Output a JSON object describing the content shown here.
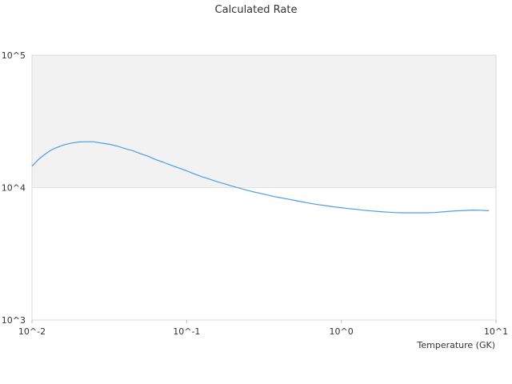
{
  "chart_data": {
    "type": "line",
    "title": "Calculated Rate",
    "xlabel": "Temperature (GK)",
    "ylabel": "",
    "x_scale": "log",
    "y_scale": "log",
    "xlim": [
      0.01,
      10
    ],
    "ylim": [
      1000,
      100000
    ],
    "x_ticks": [
      {
        "value": 0.01,
        "label": "10^-2"
      },
      {
        "value": 0.1,
        "label": "10^-1"
      },
      {
        "value": 1,
        "label": "10^0"
      },
      {
        "value": 10,
        "label": "10^1"
      }
    ],
    "y_ticks": [
      {
        "value": 1000,
        "label": "10^3"
      },
      {
        "value": 10000,
        "label": "10^4"
      },
      {
        "value": 100000,
        "label": "10^5"
      }
    ],
    "shaded_band": {
      "from": 10000,
      "to": 100000,
      "color": "#f2f2f2"
    },
    "grid": false,
    "series": [
      {
        "color": "#4a9ee8",
        "x": [
          0.01,
          0.011,
          0.012,
          0.013,
          0.014,
          0.016,
          0.018,
          0.02,
          0.022,
          0.025,
          0.028,
          0.032,
          0.036,
          0.04,
          0.045,
          0.05,
          0.056,
          0.063,
          0.07,
          0.08,
          0.09,
          0.1,
          0.11,
          0.125,
          0.14,
          0.16,
          0.18,
          0.2,
          0.22,
          0.25,
          0.28,
          0.32,
          0.36,
          0.4,
          0.45,
          0.5,
          0.56,
          0.63,
          0.7,
          0.8,
          0.9,
          1.0,
          1.1,
          1.25,
          1.4,
          1.6,
          1.8,
          2.0,
          2.2,
          2.5,
          2.8,
          3.2,
          3.6,
          4.0,
          4.5,
          5.0,
          5.6,
          6.3,
          7.0,
          8.0,
          9.0
        ],
        "y": [
          14500,
          16300,
          17700,
          18900,
          19800,
          21000,
          21700,
          22100,
          22200,
          22200,
          21700,
          21200,
          20500,
          19700,
          19000,
          18100,
          17300,
          16300,
          15600,
          14700,
          14000,
          13400,
          12800,
          12100,
          11600,
          11000,
          10600,
          10200,
          9900,
          9500,
          9200,
          8900,
          8600,
          8400,
          8200,
          8000,
          7800,
          7600,
          7450,
          7300,
          7150,
          7050,
          6950,
          6850,
          6750,
          6650,
          6580,
          6520,
          6480,
          6450,
          6450,
          6450,
          6450,
          6480,
          6550,
          6620,
          6680,
          6720,
          6760,
          6750,
          6680
        ]
      }
    ]
  }
}
